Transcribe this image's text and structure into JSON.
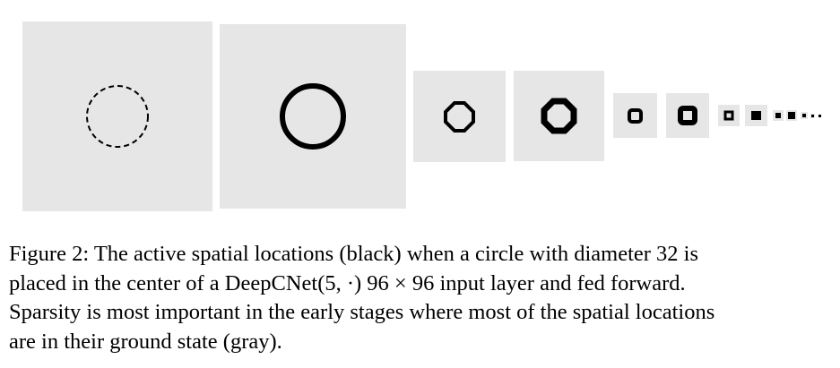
{
  "figure": {
    "label": "Figure 2:",
    "caption_lines": [
      "The active spatial locations (black) when a circle with diameter 32 is",
      "placed in the center of a DeepCNet(5, ·) 96 × 96 input layer and fed forward.",
      "Sparsity is most important in the early stages where most of the spatial locations",
      "are in their ground state (gray)."
    ],
    "colors": {
      "ground_state": "#e6e6e6",
      "active": "#000000"
    }
  }
}
